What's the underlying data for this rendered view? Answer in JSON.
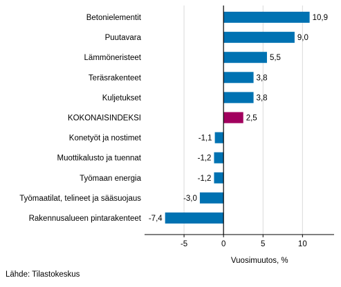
{
  "chart_data": {
    "type": "bar",
    "orientation": "horizontal",
    "categories": [
      "Betonielementit",
      "Puutavara",
      "Lämmöneristeet",
      "Teräsrakenteet",
      "Kuljetukset",
      "KOKONAISINDEKSI",
      "Konetyöt ja nostimet",
      "Muottikalusto ja tuennat",
      "Työmaan energia",
      "Työmaatilat, telineet ja sääsuojaus",
      "Rakennusalueen pintarakenteet"
    ],
    "values": [
      10.9,
      9.0,
      5.5,
      3.8,
      3.8,
      2.5,
      -1.1,
      -1.2,
      -1.2,
      -3.0,
      -7.4
    ],
    "value_labels": [
      "10,9",
      "9,0",
      "5,5",
      "3,8",
      "3,8",
      "2,5",
      "-1,1",
      "-1,2",
      "-1,2",
      "-3,0",
      "-7,4"
    ],
    "highlight_category": "KOKONAISINDEKSI",
    "bar_color": "#0072b2",
    "highlight_color": "#a1005e",
    "xlabel": "Vuosimuutos, %",
    "xlim": [
      -10,
      14
    ],
    "xticks": [
      -5,
      0,
      5,
      10
    ],
    "xtick_labels": [
      "-5",
      "0",
      "5",
      "10"
    ],
    "grid": "vertical"
  },
  "source": "Lähde: Tilastokeskus"
}
